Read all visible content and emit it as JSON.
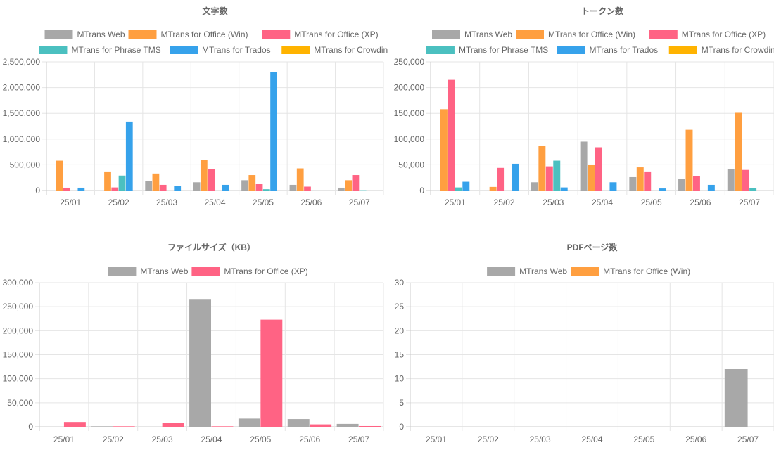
{
  "colors": {
    "MTrans Web": "#a8a8a8",
    "MTrans for Office (Win)": "#ff9f40",
    "MTrans for Office (XP)": "#ff6384",
    "MTrans for Phrase TMS": "#4bc0c0",
    "MTrans for Trados": "#36a2eb",
    "MTrans for Crowdin": "#ffb300"
  },
  "chart_data": [
    {
      "type": "bar",
      "title": "文字数",
      "categories": [
        "25/01",
        "25/02",
        "25/03",
        "25/04",
        "25/05",
        "25/06",
        "25/07"
      ],
      "ylim": [
        0,
        2500000
      ],
      "yticks": [
        "0",
        "500,000",
        "1,000,000",
        "1,500,000",
        "2,000,000",
        "2,500,000"
      ],
      "ytick_values": [
        0,
        500000,
        1000000,
        1500000,
        2000000,
        2500000
      ],
      "legend_rows": [
        [
          "MTrans Web",
          "MTrans for Office (Win)",
          "MTrans for Office (XP)"
        ],
        [
          "MTrans for Phrase TMS",
          "MTrans for Trados",
          "MTrans for Crowdin"
        ]
      ],
      "series": [
        {
          "name": "MTrans Web",
          "values": [
            0,
            0,
            190000,
            160000,
            200000,
            110000,
            55000
          ]
        },
        {
          "name": "MTrans for Office (Win)",
          "values": [
            580000,
            370000,
            330000,
            590000,
            300000,
            430000,
            200000
          ]
        },
        {
          "name": "MTrans for Office (XP)",
          "values": [
            55000,
            60000,
            110000,
            410000,
            135000,
            75000,
            300000
          ]
        },
        {
          "name": "MTrans for Phrase TMS",
          "values": [
            0,
            290000,
            0,
            0,
            25000,
            0,
            5000
          ]
        },
        {
          "name": "MTrans for Trados",
          "values": [
            55000,
            1340000,
            90000,
            110000,
            2300000,
            0,
            0
          ]
        },
        {
          "name": "MTrans for Crowdin",
          "values": [
            0,
            0,
            0,
            0,
            0,
            0,
            0
          ]
        }
      ]
    },
    {
      "type": "bar",
      "title": "トークン数",
      "categories": [
        "25/01",
        "25/02",
        "25/03",
        "25/04",
        "25/05",
        "25/06",
        "25/07"
      ],
      "ylim": [
        0,
        250000
      ],
      "yticks": [
        "0",
        "50,000",
        "100,000",
        "150,000",
        "200,000",
        "250,000"
      ],
      "ytick_values": [
        0,
        50000,
        100000,
        150000,
        200000,
        250000
      ],
      "legend_rows": [
        [
          "MTrans Web",
          "MTrans for Office (Win)",
          "MTrans for Office (XP)"
        ],
        [
          "MTrans for Phrase TMS",
          "MTrans for Trados",
          "MTrans for Crowdin"
        ]
      ],
      "series": [
        {
          "name": "MTrans Web",
          "values": [
            0,
            0,
            16000,
            95000,
            26000,
            23000,
            41000
          ]
        },
        {
          "name": "MTrans for Office (Win)",
          "values": [
            158000,
            7000,
            87000,
            50000,
            45000,
            118000,
            151000
          ]
        },
        {
          "name": "MTrans for Office (XP)",
          "values": [
            215000,
            44000,
            47000,
            84000,
            37000,
            28000,
            40000
          ]
        },
        {
          "name": "MTrans for Phrase TMS",
          "values": [
            6000,
            0,
            58000,
            0,
            0,
            0,
            5000
          ]
        },
        {
          "name": "MTrans for Trados",
          "values": [
            17000,
            52000,
            6000,
            16000,
            4000,
            11000,
            0
          ]
        },
        {
          "name": "MTrans for Crowdin",
          "values": [
            0,
            0,
            0,
            0,
            0,
            0,
            0
          ]
        }
      ]
    },
    {
      "type": "bar",
      "title": "ファイルサイズ（KB）",
      "categories": [
        "25/01",
        "25/02",
        "25/03",
        "25/04",
        "25/05",
        "25/06",
        "25/07"
      ],
      "ylim": [
        0,
        300000
      ],
      "yticks": [
        "0",
        "50,000",
        "100,000",
        "150,000",
        "200,000",
        "250,000",
        "300,000"
      ],
      "ytick_values": [
        0,
        50000,
        100000,
        150000,
        200000,
        250000,
        300000
      ],
      "legend_rows": [
        [
          "MTrans Web",
          "MTrans for Office (XP)"
        ]
      ],
      "series": [
        {
          "name": "MTrans Web",
          "values": [
            0,
            1000,
            0,
            266000,
            17000,
            16000,
            6000
          ]
        },
        {
          "name": "MTrans for Office (XP)",
          "values": [
            10000,
            1000,
            8000,
            1000,
            223000,
            5000,
            1500
          ]
        }
      ]
    },
    {
      "type": "bar",
      "title": "PDFページ数",
      "categories": [
        "25/01",
        "25/02",
        "25/03",
        "25/04",
        "25/05",
        "25/06",
        "25/07"
      ],
      "ylim": [
        0,
        30
      ],
      "yticks": [
        "0",
        "5",
        "10",
        "15",
        "20",
        "25",
        "30"
      ],
      "ytick_values": [
        0,
        5,
        10,
        15,
        20,
        25,
        30
      ],
      "legend_rows": [
        [
          "MTrans Web",
          "MTrans for Office (Win)"
        ]
      ],
      "series": [
        {
          "name": "MTrans Web",
          "values": [
            0,
            0,
            0,
            0,
            0,
            0,
            12
          ]
        },
        {
          "name": "MTrans for Office (Win)",
          "values": [
            0,
            0,
            0,
            0,
            0,
            0,
            0
          ]
        }
      ]
    }
  ]
}
